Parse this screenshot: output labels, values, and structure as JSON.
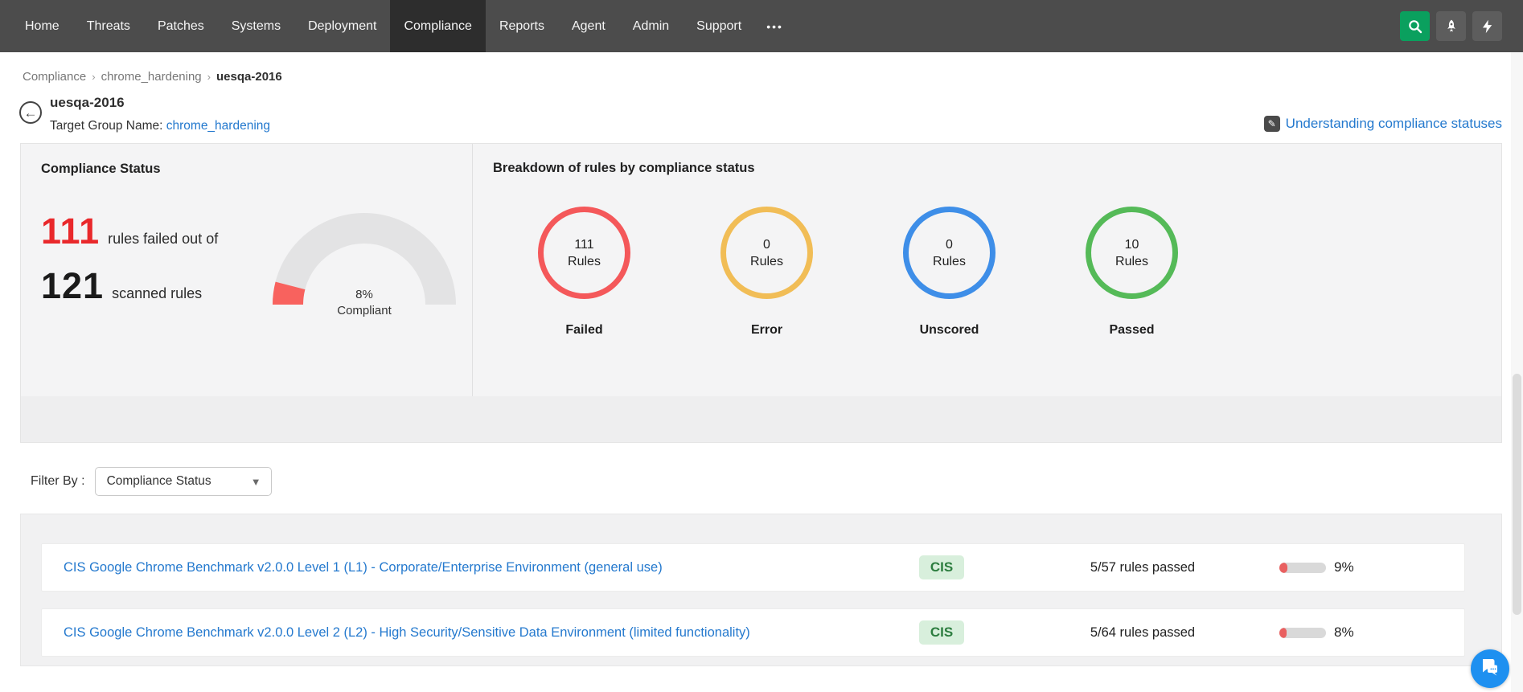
{
  "nav": {
    "items": [
      {
        "label": "Home"
      },
      {
        "label": "Threats"
      },
      {
        "label": "Patches"
      },
      {
        "label": "Systems"
      },
      {
        "label": "Deployment"
      },
      {
        "label": "Compliance"
      },
      {
        "label": "Reports"
      },
      {
        "label": "Agent"
      },
      {
        "label": "Admin"
      },
      {
        "label": "Support"
      }
    ],
    "active": "Compliance",
    "more_label": "•••",
    "colors": {
      "bar": "#4c4c4c",
      "active_tab": "#2d2d2d",
      "search_button": "#0aa05e"
    }
  },
  "breadcrumb": {
    "items": [
      "Compliance",
      "chrome_hardening",
      "uesqa-2016"
    ]
  },
  "header": {
    "title": "uesqa-2016",
    "target_group_label": "Target Group Name:",
    "target_group_link": "chrome_hardening",
    "help_link": "Understanding compliance statuses"
  },
  "compliance_status": {
    "panel_title": "Compliance Status",
    "failed_count": "111",
    "failed_text": "rules failed out of",
    "scanned_count": "121",
    "scanned_text": "scanned rules",
    "gauge": {
      "percent": 8,
      "label_line1": "8%",
      "label_line2": "Compliant",
      "fill_color": "#f8625e",
      "track_color": "#e3e3e4"
    }
  },
  "breakdown": {
    "panel_title": "Breakdown of rules by compliance status",
    "items": [
      {
        "count": "111",
        "unit": "Rules",
        "label": "Failed",
        "color": "#f4585a"
      },
      {
        "count": "0",
        "unit": "Rules",
        "label": "Error",
        "color": "#f1bd56"
      },
      {
        "count": "0",
        "unit": "Rules",
        "label": "Unscored",
        "color": "#3e8ee8"
      },
      {
        "count": "10",
        "unit": "Rules",
        "label": "Passed",
        "color": "#55ba58"
      }
    ]
  },
  "filter": {
    "label": "Filter By :",
    "selected": "Compliance Status"
  },
  "table": {
    "rows": [
      {
        "title": "CIS Google Chrome Benchmark v2.0.0 Level 1 (L1) - Corporate/Enterprise Environment (general use)",
        "badge": "CIS",
        "passed": "5/57 rules passed",
        "percent": 9,
        "percent_label": "9%"
      },
      {
        "title": "CIS Google Chrome Benchmark v2.0.0 Level 2 (L2) - High Security/Sensitive Data Environment (limited functionality)",
        "badge": "CIS",
        "passed": "5/64 rules passed",
        "percent": 8,
        "percent_label": "8%"
      }
    ]
  }
}
